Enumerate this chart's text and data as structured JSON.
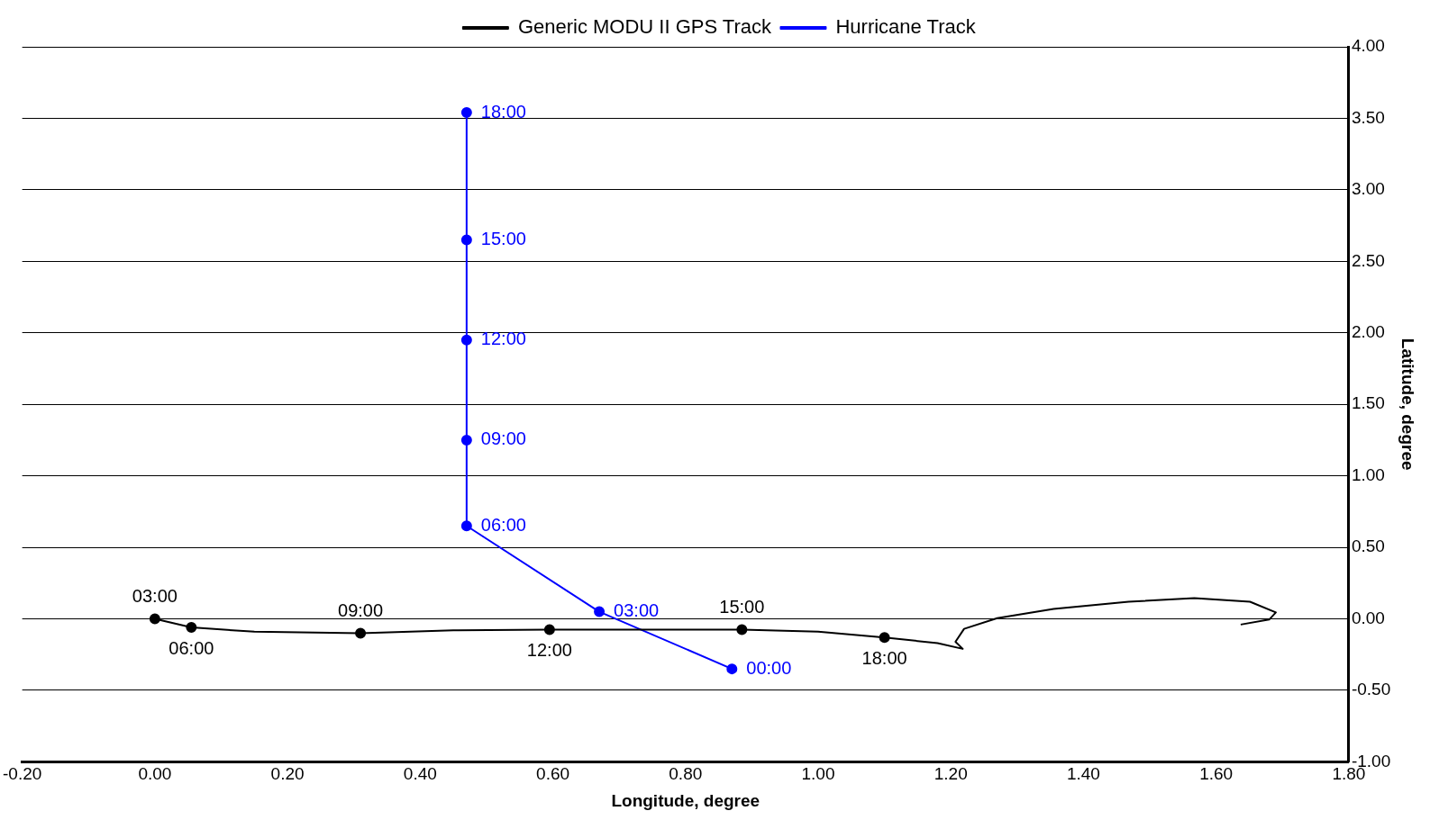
{
  "chart_data": {
    "type": "line",
    "xlabel": "Longitude, degree",
    "ylabel": "Latitude, degree",
    "xlim": [
      -0.2,
      1.8
    ],
    "xticks": [
      {
        "value": -0.2,
        "label": "-0.20"
      },
      {
        "value": 0,
        "label": "0.00"
      },
      {
        "value": 0.2,
        "label": "0.20"
      },
      {
        "value": 0.4,
        "label": "0.40"
      },
      {
        "value": 0.6,
        "label": "0.60"
      },
      {
        "value": 0.8,
        "label": "0.80"
      },
      {
        "value": 1,
        "label": "1.00"
      },
      {
        "value": 1.2,
        "label": "1.20"
      },
      {
        "value": 1.4,
        "label": "1.40"
      },
      {
        "value": 1.6,
        "label": "1.60"
      },
      {
        "value": 1.8,
        "label": "1.80"
      }
    ],
    "ylim": [
      -1,
      4
    ],
    "yticks": [
      {
        "value": -1,
        "label": "-1.00"
      },
      {
        "value": -0.5,
        "label": "-0.50"
      },
      {
        "value": 0,
        "label": "0.00"
      },
      {
        "value": 0.5,
        "label": "0.50"
      },
      {
        "value": 1,
        "label": "1.00"
      },
      {
        "value": 1.5,
        "label": "1.50"
      },
      {
        "value": 2,
        "label": "2.00"
      },
      {
        "value": 2.5,
        "label": "2.50"
      },
      {
        "value": 3,
        "label": "3.00"
      },
      {
        "value": 3.5,
        "label": "3.50"
      },
      {
        "value": 4,
        "label": "4.00"
      }
    ],
    "grid": "y",
    "legend": "top",
    "series": [
      {
        "name": "Generic MODU II GPS Track",
        "marker": "none",
        "color": "#000000",
        "x": [
          0,
          0.055,
          0.15,
          0.31,
          0.45,
          0.595,
          0.885,
          1.0,
          1.1,
          1.18,
          1.218,
          1.207,
          1.22,
          1.27,
          1.355,
          1.468,
          1.567,
          1.651,
          1.69,
          1.68,
          1.637
        ],
        "values": [
          0,
          -0.06,
          -0.09,
          -0.1,
          -0.08,
          -0.075,
          -0.075,
          -0.09,
          -0.13,
          -0.17,
          -0.21,
          -0.16,
          -0.07,
          0.005,
          0.07,
          0.12,
          0.145,
          0.12,
          0.045,
          -0.005,
          -0.04
        ]
      },
      {
        "type": "scatter",
        "marker": "circle",
        "color": "#000000",
        "x": [
          0,
          0.055,
          0.31,
          0.595,
          0.885,
          1.1
        ],
        "values": [
          0,
          -0.06,
          -0.1,
          -0.075,
          -0.075,
          -0.13
        ]
      },
      {
        "name": "Hurricane Track",
        "marker": "circle",
        "color": "#0000ff",
        "x": [
          0.87,
          0.67,
          0.47,
          0.47,
          0.47,
          0.47,
          0.47
        ],
        "values": [
          -0.35,
          0.05,
          0.65,
          1.25,
          1.95,
          2.65,
          3.54
        ]
      }
    ],
    "annotations": [
      {
        "text": "03:00",
        "x": 0,
        "y": 0
      },
      {
        "text": "06:00",
        "x": 0.055,
        "y": -0.06
      },
      {
        "text": "09:00",
        "x": 0.31,
        "y": -0.1
      },
      {
        "text": "12:00",
        "x": 0.595,
        "y": -0.075
      },
      {
        "text": "15:00",
        "x": 0.885,
        "y": -0.075
      },
      {
        "text": "18:00",
        "x": 1.1,
        "y": -0.13
      },
      {
        "text": "00:00",
        "x": 0.87,
        "y": -0.35
      },
      {
        "text": "03:00",
        "x": 0.67,
        "y": 0.05
      },
      {
        "text": "06:00",
        "x": 0.47,
        "y": 0.65
      },
      {
        "text": "09:00",
        "x": 0.47,
        "y": 1.25
      },
      {
        "text": "12:00",
        "x": 0.47,
        "y": 1.95
      },
      {
        "text": "15:00",
        "x": 0.47,
        "y": 2.65
      },
      {
        "text": "18:00",
        "x": 0.47,
        "y": 3.54
      }
    ]
  }
}
